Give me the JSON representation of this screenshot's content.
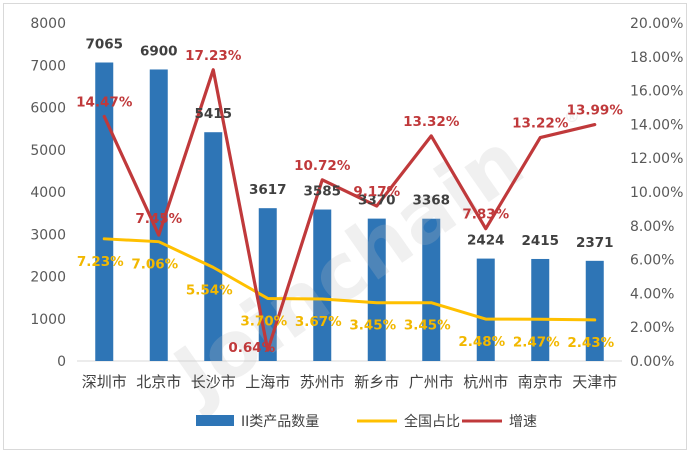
{
  "chart_data": {
    "type": "bar",
    "categories": [
      "深圳市",
      "北京市",
      "长沙市",
      "上海市",
      "苏州市",
      "新乡市",
      "广州市",
      "杭州市",
      "南京市",
      "天津市"
    ],
    "ylim": [
      0,
      8000
    ],
    "y_ticks": [
      "0",
      "1000",
      "2000",
      "3000",
      "4000",
      "5000",
      "6000",
      "7000",
      "8000"
    ],
    "y2lim": [
      0,
      20
    ],
    "y2_ticks": [
      "0.00%",
      "2.00%",
      "4.00%",
      "6.00%",
      "8.00%",
      "10.00%",
      "12.00%",
      "14.00%",
      "16.00%",
      "18.00%",
      "20.00%"
    ],
    "grid": false,
    "legend_position": "bottom",
    "series": [
      {
        "name": "II类产品数量",
        "type": "bar",
        "axis": "left",
        "color": "#2E75B6",
        "values": [
          7065,
          6900,
          5415,
          3617,
          3585,
          3370,
          3368,
          2424,
          2415,
          2371
        ],
        "labels": [
          "7065",
          "6900",
          "5415",
          "3617",
          "3585",
          "3370",
          "3368",
          "2424",
          "2415",
          "2371"
        ]
      },
      {
        "name": "全国占比",
        "type": "line",
        "axis": "right",
        "color": "#FFC000",
        "values": [
          7.23,
          7.06,
          5.54,
          3.7,
          3.67,
          3.45,
          3.45,
          2.48,
          2.47,
          2.43
        ],
        "labels": [
          "7.23%",
          "7.06%",
          "5.54%",
          "3.70%",
          "3.67%",
          "3.45%",
          "3.45%",
          "2.48%",
          "2.47%",
          "2.43%"
        ]
      },
      {
        "name": "增速",
        "type": "line",
        "axis": "right",
        "color": "#C0393B",
        "values": [
          14.47,
          7.45,
          17.23,
          0.64,
          10.72,
          9.17,
          13.32,
          7.83,
          13.22,
          13.99
        ],
        "labels": [
          "14.47%",
          "7.45%",
          "17.23%",
          "0.64%",
          "10.72%",
          "9.17%",
          "13.32%",
          "7.83%",
          "13.22%",
          "13.99%"
        ]
      }
    ],
    "watermark": "Joinchain",
    "watermark_mark": "®"
  }
}
